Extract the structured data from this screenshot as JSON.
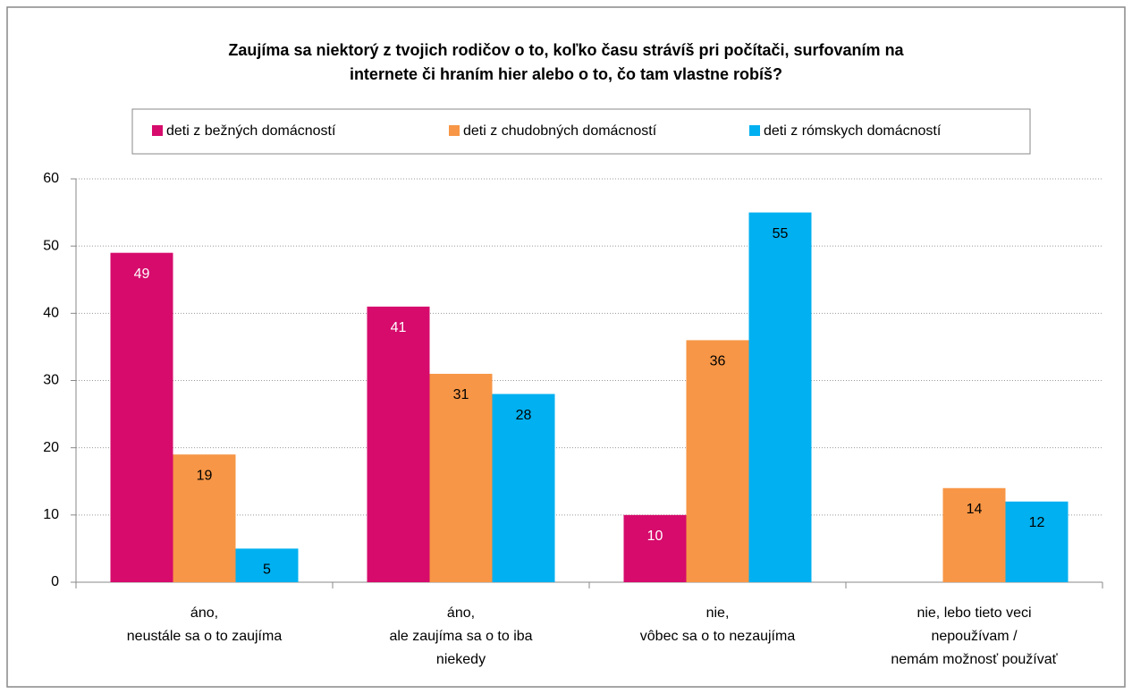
{
  "chart_data": {
    "type": "bar",
    "title": [
      "Zaujíma sa niektorý z tvojich rodičov o to, koľko času strávíš pri počítači, surfovaním na",
      "internete či hraním hier alebo o to, čo tam vlastne robíš?"
    ],
    "categories": [
      [
        "áno,",
        "neustále sa o to zaujíma"
      ],
      [
        "áno,",
        "ale zaujíma sa o to iba",
        "niekedy"
      ],
      [
        "nie,",
        "vôbec sa o to nezaujíma"
      ],
      [
        "nie, lebo tieto veci",
        "nepoužívam /",
        "nemám možnosť používať"
      ]
    ],
    "series": [
      {
        "name": "deti z bežných domácností",
        "color": "#d60b6c",
        "values": [
          49,
          41,
          10,
          null
        ]
      },
      {
        "name": "deti z chudobných domácností",
        "color": "#f79646",
        "values": [
          19,
          31,
          36,
          14
        ]
      },
      {
        "name": "deti z rómskych domácností",
        "color": "#00b0f0",
        "values": [
          5,
          28,
          55,
          12
        ]
      }
    ],
    "ylim": [
      0,
      60
    ],
    "yticks": [
      0,
      10,
      20,
      30,
      40,
      50,
      60
    ],
    "grid": true,
    "legend": "top"
  }
}
